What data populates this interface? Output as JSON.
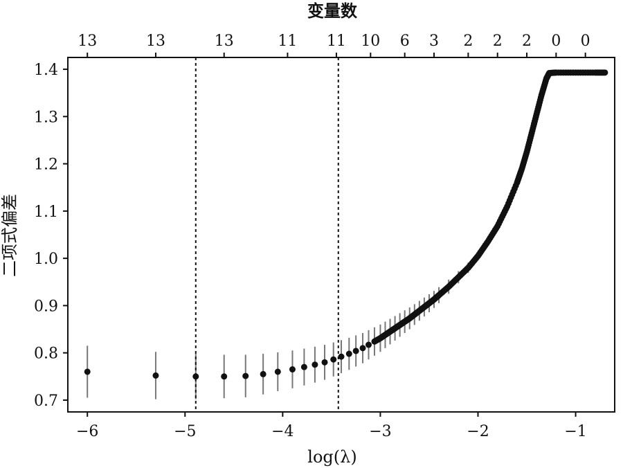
{
  "chart_data": {
    "type": "scatter",
    "xlabel": "log(λ)",
    "ylabel": "二项式偏差",
    "top_axis_title": "变量数",
    "xlim": [
      -6.2,
      -0.6
    ],
    "ylim": [
      0.675,
      1.425
    ],
    "x_ticks": [
      -6,
      -5,
      -4,
      -3,
      -2,
      -1
    ],
    "x_tick_labels": [
      "−6",
      "−5",
      "−4",
      "−3",
      "−2",
      "−1"
    ],
    "y_ticks": [
      0.7,
      0.8,
      0.9,
      1.0,
      1.1,
      1.2,
      1.3,
      1.4
    ],
    "y_tick_labels": [
      "0.7",
      "0.8",
      "0.9",
      "1.0",
      "1.1",
      "1.2",
      "1.3",
      "1.4"
    ],
    "top_ticks": [
      -6,
      -5.3,
      -4.6,
      -3.95,
      -3.45,
      -3.1,
      -2.75,
      -2.45,
      -2.1,
      -1.8,
      -1.5,
      -1.2,
      -0.9
    ],
    "top_tick_labels": [
      "13",
      "13",
      "13",
      "11",
      "11",
      "10",
      "6",
      "3",
      "2",
      "2",
      "2",
      "0",
      "0"
    ],
    "vlines": [
      -4.89,
      -3.43
    ],
    "series": [
      {
        "x": [
          -6.0,
          -5.3,
          -4.89,
          -4.6,
          -4.38,
          -4.2,
          -4.05,
          -3.9,
          -3.78,
          -3.67,
          -3.57,
          -3.48,
          -3.4,
          -3.32,
          -3.25,
          -3.18,
          -3.12,
          -3.06,
          -3.0,
          -2.95,
          -2.9,
          -2.85,
          -2.8,
          -2.75,
          -2.7,
          -2.65,
          -2.6,
          -2.55,
          -2.5,
          -2.45,
          -2.4,
          -2.3,
          -2.2,
          -2.1,
          -2.0,
          -1.9,
          -1.8,
          -1.7,
          -1.6,
          -1.55,
          -1.5,
          -1.45,
          -1.4,
          -1.35,
          -1.3,
          -1.27,
          -1.2,
          -1.0,
          -0.8,
          -0.7
        ],
        "y": [
          0.76,
          0.752,
          0.75,
          0.75,
          0.751,
          0.755,
          0.76,
          0.765,
          0.77,
          0.775,
          0.78,
          0.786,
          0.792,
          0.798,
          0.804,
          0.81,
          0.817,
          0.824,
          0.831,
          0.838,
          0.845,
          0.852,
          0.859,
          0.866,
          0.873,
          0.881,
          0.889,
          0.897,
          0.905,
          0.913,
          0.922,
          0.94,
          0.96,
          0.98,
          1.005,
          1.035,
          1.068,
          1.11,
          1.16,
          1.19,
          1.225,
          1.265,
          1.305,
          1.345,
          1.38,
          1.392,
          1.393,
          1.393,
          1.393,
          1.393
        ],
        "err": [
          0.055,
          0.05,
          0.048,
          0.046,
          0.045,
          0.043,
          0.041,
          0.04,
          0.039,
          0.038,
          0.037,
          0.036,
          0.035,
          0.034,
          0.033,
          0.032,
          0.031,
          0.03,
          0.029,
          0.028,
          0.027,
          0.026,
          0.025,
          0.024,
          0.023,
          0.022,
          0.021,
          0.02,
          0.019,
          0.018,
          0.017,
          0.015,
          0.013,
          0.011,
          0.009,
          0.008,
          0.007,
          0.006,
          0.005,
          0.004,
          0.004,
          0.003,
          0.003,
          0.002,
          0.002,
          0.001,
          0.0,
          0.0,
          0.0,
          0.0
        ]
      }
    ],
    "grid": false,
    "marker_color": "#111111",
    "errorbar_color": "#777777"
  }
}
